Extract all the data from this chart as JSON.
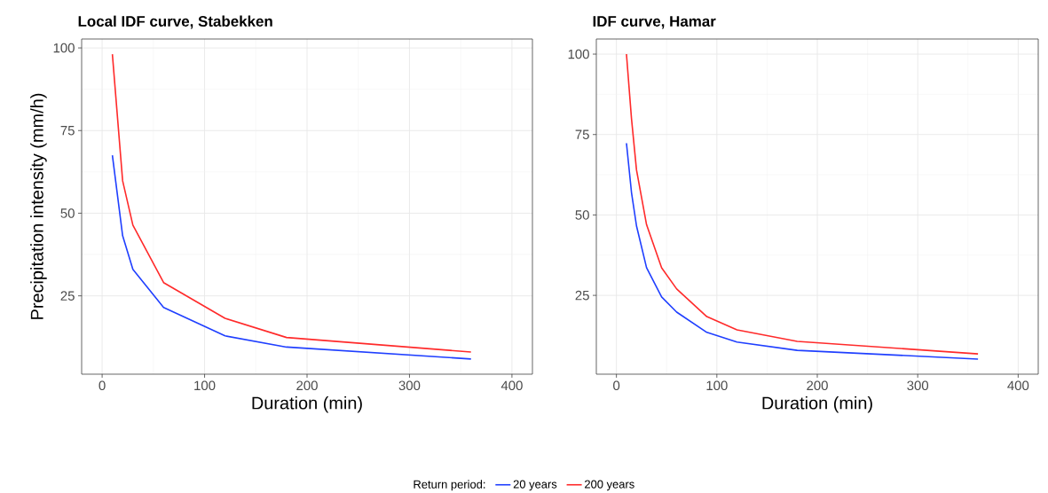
{
  "chart_data": [
    {
      "type": "line",
      "title": "Local IDF curve, Stabekken",
      "xlabel": "Duration (min)",
      "ylabel": "Precipitation intensity (mm/h)",
      "legend_title": "Return period:",
      "legend": "bottom",
      "grid": true,
      "xlim": [
        -20,
        420
      ],
      "xticks": [
        0,
        100,
        200,
        300,
        400
      ],
      "ylim": [
        1.3,
        102.7
      ],
      "yticks": [
        25,
        50,
        75,
        100
      ],
      "x": [
        10,
        20,
        30,
        60,
        120,
        180,
        360
      ],
      "series": [
        {
          "name": "20 years",
          "color": "#1f3fff",
          "values": [
            67.5,
            43.2,
            33,
            21.5,
            12.9,
            9.5,
            5.9
          ]
        },
        {
          "name": "200 years",
          "color": "#ff2a2a",
          "values": [
            98.1,
            59.8,
            46.4,
            29,
            18.2,
            12.4,
            8.0
          ]
        }
      ]
    },
    {
      "type": "line",
      "title": "IDF curve, Hamar",
      "xlabel": "Duration (min)",
      "grid": true,
      "xlim": [
        -20,
        420
      ],
      "xticks": [
        0,
        100,
        200,
        300,
        400
      ],
      "ylim": [
        0.5,
        104.7
      ],
      "yticks": [
        25,
        50,
        75,
        100
      ],
      "x": [
        10,
        15,
        20,
        30,
        45,
        60,
        90,
        120,
        180,
        360
      ],
      "series": [
        {
          "color": "#1f3fff",
          "values": [
            72.3,
            57,
            46.6,
            33.6,
            24.5,
            19.8,
            13.5,
            10.5,
            7.9,
            5.2
          ]
        },
        {
          "color": "#ff2a2a",
          "values": [
            100,
            80,
            64,
            47,
            33.6,
            27,
            18.4,
            14.3,
            10.7,
            6.8
          ]
        }
      ]
    }
  ]
}
